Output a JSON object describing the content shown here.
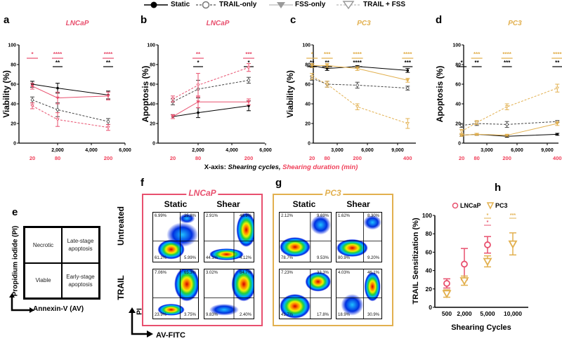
{
  "legend": {
    "items": [
      {
        "label": "Static"
      },
      {
        "label": "TRAIL-only"
      },
      {
        "label": "FSS-only"
      },
      {
        "label": "TRAIL + FSS"
      }
    ]
  },
  "colors": {
    "lncap": "#e8506e",
    "pc3": "#e2b04f",
    "static": "#000000",
    "trail": "#555555",
    "legend_gray": "#9a9a9a",
    "duration": "#f0405a"
  },
  "xaxis_caption": {
    "prefix": "X-axis: ",
    "cycles": "Shearing cycles, ",
    "duration": "Shearing duration (min)"
  },
  "chart_data": [
    {
      "panel": "a",
      "type": "line",
      "title": "LNCaP",
      "cell": "lncap",
      "ylabel": "Viability (%)",
      "ylim": [
        0,
        100
      ],
      "yticks": [
        0,
        20,
        40,
        60,
        80,
        100
      ],
      "xlim": [
        0,
        6000
      ],
      "xticks": [
        2000,
        4000,
        6000
      ],
      "xtick_labels": [
        "2,000",
        "4,000",
        "6,000"
      ],
      "x": [
        500,
        2000,
        5000
      ],
      "durations": [
        "20",
        "80",
        "200"
      ],
      "series": [
        {
          "name": "Static",
          "values": [
            60,
            56,
            49
          ],
          "err": [
            3,
            5,
            4
          ]
        },
        {
          "name": "TRAIL-only",
          "values": [
            44,
            34,
            22
          ],
          "err": [
            3,
            7,
            3
          ]
        },
        {
          "name": "FSS-only",
          "values": [
            58,
            46,
            48
          ],
          "err": [
            3,
            6,
            4
          ]
        },
        {
          "name": "TRAIL + FSS",
          "values": [
            38,
            24,
            16
          ],
          "err": [
            3,
            7,
            3
          ]
        }
      ],
      "significance": {
        "color_row": [
          "*",
          "****",
          "****"
        ],
        "black_row": [
          "",
          "**",
          "**"
        ]
      }
    },
    {
      "panel": "b",
      "type": "line",
      "title": "LNCaP",
      "cell": "lncap",
      "ylabel": "Apoptosis (%)",
      "ylim": [
        0,
        100
      ],
      "yticks": [
        0,
        20,
        40,
        60,
        80,
        100
      ],
      "xlim": [
        0,
        6000
      ],
      "xticks": [
        2000,
        4000,
        6000
      ],
      "xtick_labels": [
        "2,000",
        "4,000",
        "6,000"
      ],
      "x": [
        500,
        2000,
        5000
      ],
      "durations": [
        "20",
        "80",
        "200"
      ],
      "series": [
        {
          "name": "Static",
          "values": [
            27,
            31,
            38
          ],
          "err": [
            2,
            5,
            5
          ]
        },
        {
          "name": "TRAIL-only",
          "values": [
            42,
            55,
            64
          ],
          "err": [
            3,
            9,
            3
          ]
        },
        {
          "name": "FSS-only",
          "values": [
            27,
            42,
            42
          ],
          "err": [
            2,
            6,
            3
          ]
        },
        {
          "name": "TRAIL + FSS",
          "values": [
            45,
            59,
            77
          ],
          "err": [
            3,
            12,
            4
          ]
        }
      ],
      "significance": {
        "color_row": [
          "",
          "**",
          "***"
        ],
        "black_row": [
          "",
          "*",
          "*"
        ]
      }
    },
    {
      "panel": "c",
      "type": "line",
      "title": "PC3",
      "cell": "pc3",
      "ylabel": "Viability (%)",
      "ylim": [
        0,
        100
      ],
      "yticks": [
        0,
        20,
        40,
        60,
        80,
        100
      ],
      "xlim": [
        0,
        10000
      ],
      "xticks": [
        3000,
        6000,
        9000
      ],
      "xtick_labels": [
        "3,000",
        "6,000",
        "9,000"
      ],
      "x": [
        500,
        2000,
        5000,
        10000
      ],
      "durations": [
        "20",
        "80",
        "200",
        "400"
      ],
      "series": [
        {
          "name": "Static",
          "values": [
            79,
            76,
            78,
            74
          ],
          "err": [
            2,
            2,
            1,
            2
          ]
        },
        {
          "name": "TRAIL-only",
          "values": [
            66,
            60,
            59,
            56
          ],
          "err": [
            2,
            3,
            3,
            2
          ]
        },
        {
          "name": "FSS-only",
          "values": [
            79,
            79,
            76,
            64
          ],
          "err": [
            2,
            2,
            2,
            2
          ]
        },
        {
          "name": "TRAIL + FSS",
          "values": [
            68,
            60,
            37,
            20
          ],
          "err": [
            3,
            3,
            3,
            5
          ]
        }
      ],
      "significance": {
        "color_row": [
          "*",
          "***",
          "****",
          "****"
        ],
        "black_row": [
          "**",
          "**",
          "****",
          "***"
        ]
      }
    },
    {
      "panel": "d",
      "type": "line",
      "title": "PC3",
      "cell": "pc3",
      "ylabel": "Apoptosis (%)",
      "ylim": [
        0,
        100
      ],
      "yticks": [
        0,
        20,
        40,
        60,
        80,
        100
      ],
      "xlim": [
        0,
        10000
      ],
      "xticks": [
        3000,
        6000,
        9000
      ],
      "xtick_labels": [
        "3,000",
        "6,000",
        "9,000"
      ],
      "x": [
        500,
        2000,
        5000,
        10000
      ],
      "durations": [
        "20",
        "80",
        "200",
        "400"
      ],
      "series": [
        {
          "name": "Static",
          "values": [
            8,
            9,
            7,
            9
          ],
          "err": [
            1,
            1,
            1,
            1
          ]
        },
        {
          "name": "TRAIL-only",
          "values": [
            18,
            20,
            19,
            22
          ],
          "err": [
            2,
            2,
            3,
            1
          ]
        },
        {
          "name": "FSS-only",
          "values": [
            8,
            9,
            8,
            20
          ],
          "err": [
            1,
            1,
            1,
            2
          ]
        },
        {
          "name": "TRAIL + FSS",
          "values": [
            12,
            21,
            37,
            56
          ],
          "err": [
            2,
            2,
            3,
            4
          ]
        }
      ],
      "significance": {
        "color_row": [
          "",
          "***",
          "****",
          "****"
        ],
        "black_row": [
          "*",
          "**",
          "***",
          "**"
        ]
      }
    },
    {
      "panel": "h",
      "type": "scatter",
      "title": "",
      "ylabel": "TRAIL Sensitization (%)",
      "xlabel": "Shearing Cycles",
      "ylim": [
        0,
        100
      ],
      "yticks": [
        0,
        20,
        40,
        60,
        80,
        100
      ],
      "categories": [
        "500",
        "2,000",
        "5,000",
        "10,000"
      ],
      "legend": "top",
      "series": [
        {
          "name": "LNCaP",
          "cell": "lncap",
          "values": [
            26,
            47,
            68,
            null
          ],
          "err": [
            5,
            17,
            9,
            null
          ],
          "significance": [
            "",
            "",
            "*",
            ""
          ]
        },
        {
          "name": "PC3",
          "cell": "pc3",
          "values": [
            15,
            29,
            50,
            69
          ],
          "err": [
            4,
            5,
            6,
            12
          ],
          "significance": [
            "",
            "",
            "*",
            "***"
          ]
        }
      ]
    }
  ],
  "diagram_e": {
    "letter": "e",
    "y_axis": "Propidium iodide (PI)",
    "x_axis": "Annexin-V (AV)",
    "quadrants": {
      "upper_left": "Necrotic",
      "upper_right": "Late-stage apoptosis",
      "lower_left": "Viable",
      "lower_right": "Early-stage apoptosis"
    }
  },
  "flow": {
    "rows": [
      "Untreated",
      "TRAIL"
    ],
    "columns": [
      "Static",
      "Shear"
    ],
    "y_axis": "PI",
    "x_axis": "AV-FITC",
    "panels": [
      {
        "letter": "f",
        "title": "LNCaP",
        "cell": "lncap",
        "plots": [
          {
            "row": "Untreated",
            "col": "Static",
            "ul": "6.99%",
            "ur": "25.8%",
            "ll": "61.2%",
            "lr": "5.99%"
          },
          {
            "row": "Untreated",
            "col": "Shear",
            "ul": "2.91%",
            "ur": "48.9%",
            "ll": "44.1%",
            "lr": "4.12%"
          },
          {
            "row": "TRAIL",
            "col": "Static",
            "ul": "7.06%",
            "ur": "65.3%",
            "ll": "23.9%",
            "lr": "3.75%"
          },
          {
            "row": "TRAIL",
            "col": "Shear",
            "ul": "3.02%",
            "ur": "84.7%",
            "ll": "9.83%",
            "lr": "2.40%"
          }
        ]
      },
      {
        "letter": "g",
        "title": "PC3",
        "cell": "pc3",
        "plots": [
          {
            "row": "Untreated",
            "col": "Static",
            "ul": "2.12%",
            "ur": "9.69%",
            "ll": "78.7%",
            "lr": "9.53%"
          },
          {
            "row": "Untreated",
            "col": "Shear",
            "ul": "1.62%",
            "ur": "8.30%",
            "ll": "80.9%",
            "lr": "9.20%"
          },
          {
            "row": "TRAIL",
            "col": "Static",
            "ul": "7.23%",
            "ur": "33.3%",
            "ll": "41.7%",
            "lr": "17.8%"
          },
          {
            "row": "TRAIL",
            "col": "Shear",
            "ul": "4.03%",
            "ur": "46.1%",
            "ll": "18.9%",
            "lr": "30.9%"
          }
        ]
      }
    ]
  }
}
